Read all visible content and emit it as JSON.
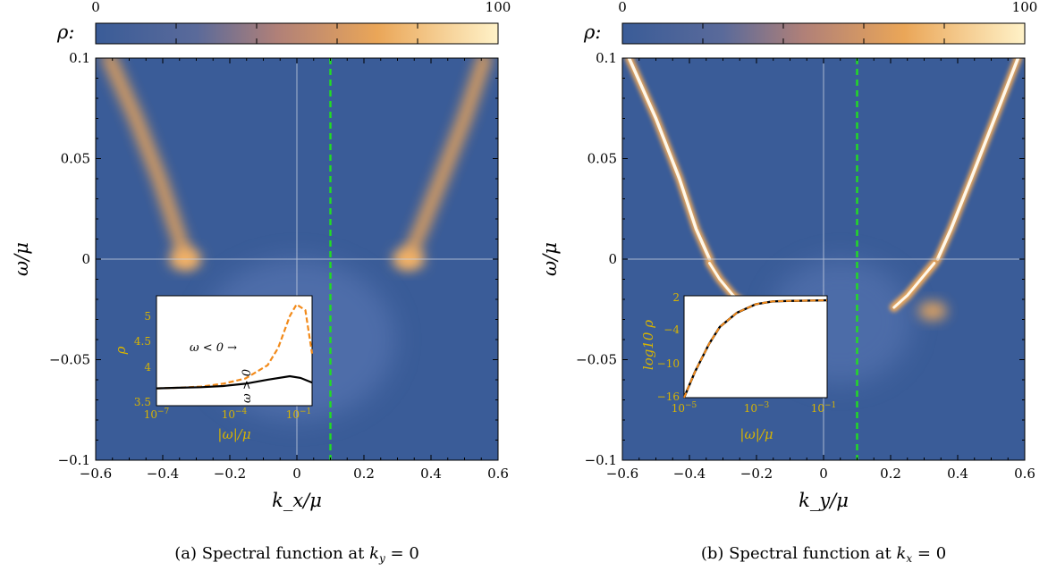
{
  "colorbar": {
    "min_label": "0",
    "max_label": "100",
    "symbol": "ρ:"
  },
  "colors": {
    "background": "#3a5c98",
    "highlight": "#f4b25e",
    "peak": "#fff6df",
    "guide": "#22dd22",
    "dashed_curve": "#f28a1a",
    "inset_text": "#d8b400"
  },
  "panels": [
    {
      "caption": "(a) Spectral function at k_y = 0",
      "xlabel": "k_x/μ",
      "ylabel": "ω/μ",
      "xlim": [
        -0.6,
        0.6
      ],
      "ylim": [
        -0.1,
        0.1
      ],
      "xticks": [
        "−0.6",
        "−0.4",
        "−0.2",
        "0",
        "0.2",
        "0.4",
        "0.6"
      ],
      "yticks": [
        "0.1",
        "0.05",
        "0",
        "−0.05",
        "−0.1"
      ],
      "green_dashed_line_x": 0.1,
      "inset": {
        "xlabel": "|ω|/μ",
        "ylabel": "ρ",
        "xticks": [
          "10^-7",
          "10^-4",
          "10^-1"
        ],
        "yticks": [
          "5",
          "4.5",
          "4",
          "3.5"
        ],
        "annot_neg": "ω < 0 →",
        "annot_pos": "ω > 0"
      }
    },
    {
      "caption": "(b) Spectral function at k_x = 0",
      "xlabel": "k_y/μ",
      "ylabel": "ω/μ",
      "xlim": [
        -0.6,
        0.6
      ],
      "ylim": [
        -0.1,
        0.1
      ],
      "xticks": [
        "−0.6",
        "−0.4",
        "−0.2",
        "0",
        "0.2",
        "0.4",
        "0.6"
      ],
      "yticks": [
        "0.1",
        "0.05",
        "0",
        "−0.05",
        "−0.1"
      ],
      "green_dashed_line_x": 0.1,
      "inset": {
        "xlabel": "|ω|/μ",
        "ylabel": "log10 ρ",
        "xticks": [
          "10^-5",
          "10^-3",
          "10^-1"
        ],
        "yticks": [
          "2",
          "−4",
          "−10",
          "−16"
        ]
      }
    }
  ],
  "chart_data": [
    {
      "type": "heatmap",
      "title": "",
      "xlabel": "k_x/μ",
      "ylabel": "ω/μ",
      "xlim": [
        -0.6,
        0.6
      ],
      "ylim": [
        -0.1,
        0.1
      ],
      "color_range": [
        0,
        100
      ],
      "bands": [
        {
          "x": [
            -0.56,
            -0.48,
            -0.41,
            -0.36,
            -0.33
          ],
          "y": [
            0.1,
            0.07,
            0.04,
            0.015,
            0.0
          ]
        },
        {
          "x": [
            0.33,
            0.37,
            0.43,
            0.5,
            0.56
          ],
          "y": [
            0.0,
            0.015,
            0.04,
            0.07,
            0.1
          ]
        }
      ],
      "inset": {
        "type": "line",
        "x_scale": "log",
        "xlim": [
          1e-07,
          1
        ],
        "ylim": [
          3.5,
          5.4
        ],
        "series": [
          {
            "name": "ω < 0",
            "x": [
              1e-07,
              1e-06,
              1e-05,
              0.0001,
              0.001,
              0.01,
              0.03,
              0.1,
              0.2,
              0.5,
              1
            ],
            "y": [
              3.8,
              3.81,
              3.83,
              3.88,
              3.97,
              4.2,
              4.5,
              5.05,
              5.25,
              5.15,
              4.4
            ]
          },
          {
            "name": "ω > 0",
            "x": [
              1e-07,
              1e-06,
              1e-05,
              0.0001,
              0.001,
              0.01,
              0.1,
              0.3,
              1
            ],
            "y": [
              3.8,
              3.81,
              3.82,
              3.84,
              3.88,
              3.95,
              4.01,
              3.98,
              3.9
            ]
          }
        ]
      }
    },
    {
      "type": "heatmap",
      "title": "",
      "xlabel": "k_y/μ",
      "ylabel": "ω/μ",
      "xlim": [
        -0.6,
        0.6
      ],
      "ylim": [
        -0.1,
        0.1
      ],
      "color_range": [
        0,
        100
      ],
      "bands": [
        {
          "x": [
            -0.58,
            -0.5,
            -0.43,
            -0.38,
            -0.34
          ],
          "y": [
            0.1,
            0.07,
            0.04,
            0.015,
            0.0
          ]
        },
        {
          "x": [
            -0.34,
            -0.31,
            -0.27,
            -0.22
          ],
          "y": [
            -0.002,
            -0.01,
            -0.018,
            -0.024
          ]
        },
        {
          "x": [
            0.34,
            0.38,
            0.44,
            0.51,
            0.58
          ],
          "y": [
            0.0,
            0.015,
            0.04,
            0.07,
            0.1
          ]
        },
        {
          "x": [
            0.33,
            0.29,
            0.25,
            0.21
          ],
          "y": [
            -0.002,
            -0.01,
            -0.018,
            -0.024
          ]
        }
      ],
      "inset": {
        "type": "line",
        "x_scale": "log",
        "xlim": [
          1e-05,
          0.1
        ],
        "ylim": [
          -16,
          2
        ],
        "series": [
          {
            "x": [
              1e-05,
              2e-05,
              5e-05,
              0.0001,
              0.0003,
              0.001,
              0.003,
              0.01,
              0.1
            ],
            "y": [
              -16,
              -11.5,
              -6.5,
              -3.5,
              -1,
              0.5,
              1.0,
              1.1,
              1.2
            ]
          }
        ]
      }
    }
  ]
}
